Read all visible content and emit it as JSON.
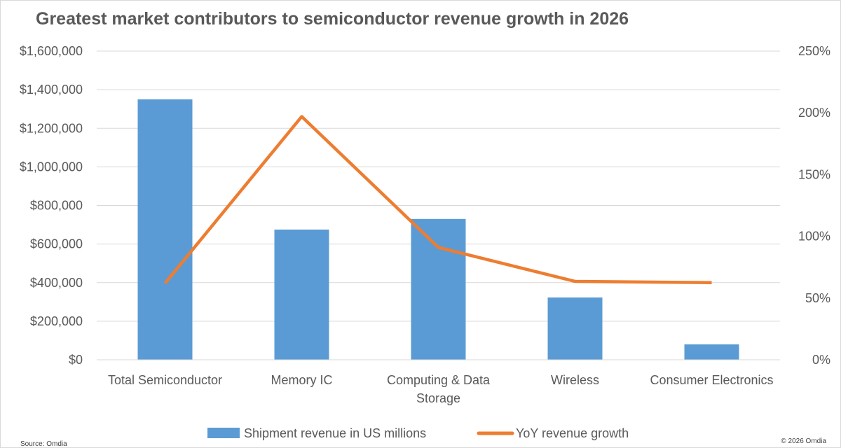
{
  "chart_data": {
    "type": "bar+line",
    "title": "Greatest market contributors to semiconductor revenue growth in 2026",
    "categories": [
      "Total Semiconductor",
      "Memory IC",
      "Computing & Data Storage",
      "Wireless",
      "Consumer Electronics"
    ],
    "series": [
      {
        "name": "Shipment revenue in US millions",
        "type": "bar",
        "axis": "left",
        "color": "#5b9bd5",
        "values": [
          1350000,
          675000,
          730000,
          323000,
          80000
        ]
      },
      {
        "name": "YoY revenue growth",
        "type": "line",
        "axis": "right",
        "color": "#ed7d31",
        "values": [
          62,
          197,
          91,
          63.5,
          62.5
        ]
      }
    ],
    "y_left": {
      "ylim": [
        0,
        1600000
      ],
      "ticks": [
        "$0",
        "$200,000",
        "$400,000",
        "$600,000",
        "$800,000",
        "$1,000,000",
        "$1,200,000",
        "$1,400,000",
        "$1,600,000"
      ]
    },
    "y_right": {
      "ylim": [
        0,
        250
      ],
      "ticks": [
        "0%",
        "50%",
        "100%",
        "150%",
        "200%",
        "250%"
      ]
    },
    "grid": true,
    "legend": "bottom"
  },
  "footer": {
    "source": "Source: Omdia",
    "copyright": "© 2026 Omdia"
  }
}
